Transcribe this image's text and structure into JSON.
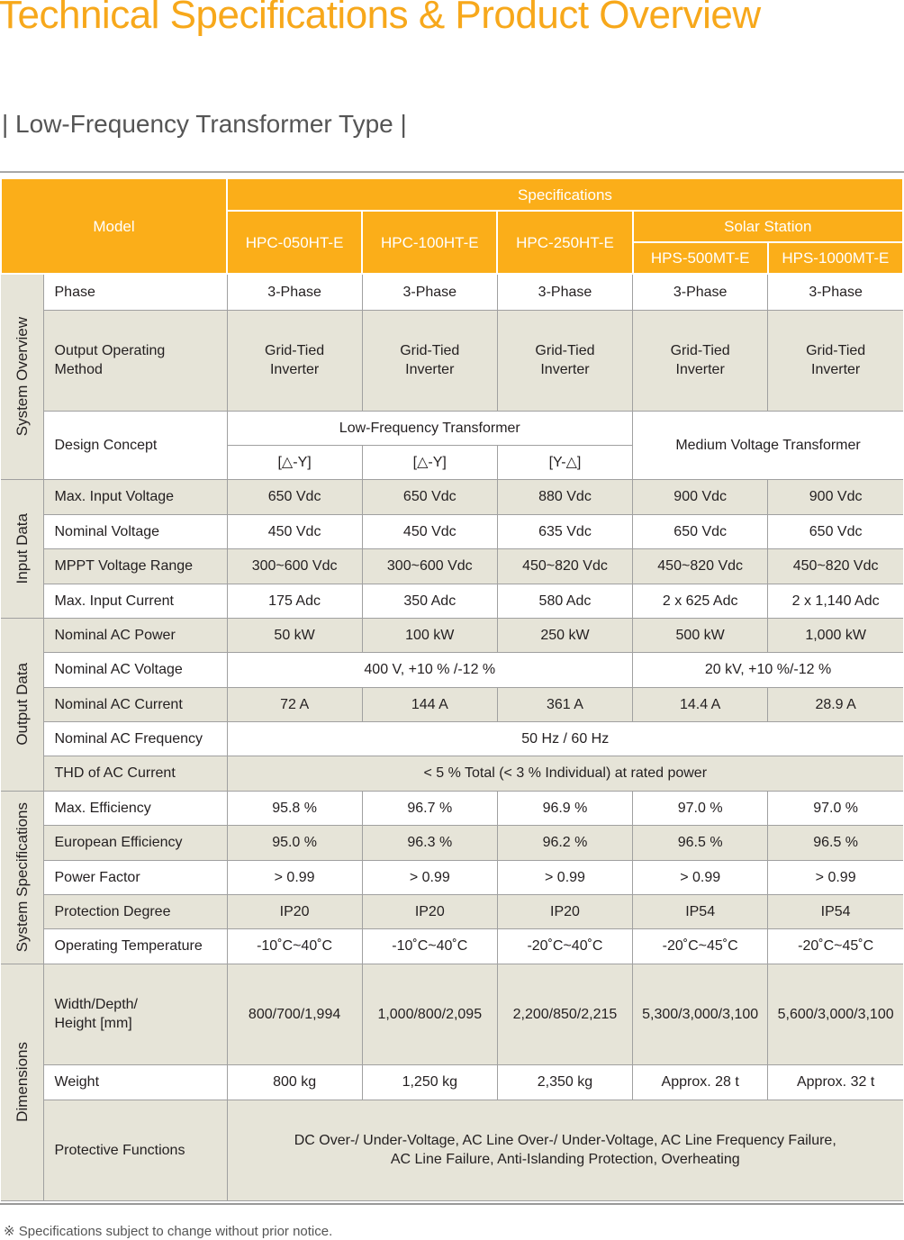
{
  "title": "Technical Specifications & Product Overview",
  "subtitle": "| Low-Frequency Transformer Type |",
  "header": {
    "model": "Model",
    "specifications": "Specifications",
    "solar_station": "Solar Station",
    "models": [
      "HPC-050HT-E",
      "HPC-100HT-E",
      "HPC-250HT-E",
      "HPS-500MT-E",
      "HPS-1000MT-E"
    ]
  },
  "groups": [
    {
      "category": "System Overview",
      "rows": [
        {
          "label": "Phase",
          "cells": [
            "3-Phase",
            "3-Phase",
            "3-Phase",
            "3-Phase",
            "3-Phase"
          ]
        },
        {
          "label": "Output Operating\nMethod",
          "cells": [
            "Grid-Tied\nInverter",
            "Grid-Tied\nInverter",
            "Grid-Tied\nInverter",
            "Grid-Tied\nInverter",
            "Grid-Tied\nInverter"
          ]
        },
        {
          "label": "Design Concept",
          "cells": [
            {
              "text": "Low-Frequency Transformer",
              "span": 3
            },
            {
              "text": "Medium Voltage Transformer",
              "span": 2,
              "rowspan": 2
            }
          ],
          "cells2": [
            "[△-Y]",
            "[△-Y]",
            "[Y-△]"
          ]
        }
      ]
    },
    {
      "category": "Input Data",
      "rows": [
        {
          "label": "Max. Input Voltage",
          "cells": [
            "650 Vdc",
            "650 Vdc",
            "880 Vdc",
            "900 Vdc",
            "900 Vdc"
          ]
        },
        {
          "label": "Nominal Voltage",
          "cells": [
            "450 Vdc",
            "450 Vdc",
            "635 Vdc",
            "650 Vdc",
            "650 Vdc"
          ]
        },
        {
          "label": "MPPT Voltage Range",
          "cells": [
            "300~600 Vdc",
            "300~600 Vdc",
            "450~820 Vdc",
            "450~820 Vdc",
            "450~820 Vdc"
          ]
        },
        {
          "label": "Max. Input Current",
          "cells": [
            "175 Adc",
            "350 Adc",
            "580 Adc",
            "2 x 625 Adc",
            "2 x 1,140 Adc"
          ]
        }
      ]
    },
    {
      "category": "Output Data",
      "rows": [
        {
          "label": "Nominal AC Power",
          "cells": [
            "50 kW",
            "100 kW",
            "250 kW",
            "500 kW",
            "1,000 kW"
          ]
        },
        {
          "label": "Nominal AC Voltage",
          "cells": [
            {
              "text": "400 V, +10 % /-12 %",
              "span": 3
            },
            {
              "text": "20 kV, +10 %/-12 %",
              "span": 2
            }
          ]
        },
        {
          "label": "Nominal AC Current",
          "cells": [
            "72 A",
            "144 A",
            "361 A",
            "14.4 A",
            "28.9 A"
          ]
        },
        {
          "label": "Nominal AC Frequency",
          "cells": [
            {
              "text": "50 Hz / 60 Hz",
              "span": 5
            }
          ]
        },
        {
          "label": "THD of AC Current",
          "cells": [
            {
              "text": "< 5 % Total (< 3 % Individual) at rated power",
              "span": 5
            }
          ]
        }
      ]
    },
    {
      "category": "System Specifications",
      "rows": [
        {
          "label": "Max. Efficiency",
          "cells": [
            "95.8 %",
            "96.7 %",
            "96.9 %",
            "97.0 %",
            "97.0 %"
          ]
        },
        {
          "label": "European Efficiency",
          "cells": [
            "95.0 %",
            "96.3 %",
            "96.2 %",
            "96.5 %",
            "96.5 %"
          ]
        },
        {
          "label": "Power Factor",
          "cells": [
            "> 0.99",
            "> 0.99",
            "> 0.99",
            "> 0.99",
            "> 0.99"
          ]
        },
        {
          "label": "Protection Degree",
          "cells": [
            "IP20",
            "IP20",
            "IP20",
            "IP54",
            "IP54"
          ]
        },
        {
          "label": "Operating Temperature",
          "cells": [
            "-10˚C~40˚C",
            "-10˚C~40˚C",
            "-20˚C~40˚C",
            "-20˚C~45˚C",
            "-20˚C~45˚C"
          ]
        }
      ]
    },
    {
      "category": "Dimensions",
      "rows": [
        {
          "label": "Width/Depth/\nHeight [mm]",
          "cells": [
            "800/700/1,994",
            "1,000/800/2,095",
            "2,200/850/2,215",
            "5,300/3,000/3,100",
            "5,600/3,000/3,100"
          ]
        },
        {
          "label": "Weight",
          "cells": [
            "800 kg",
            "1,250 kg",
            "2,350 kg",
            "Approx. 28 t",
            "Approx. 32 t"
          ]
        },
        {
          "label": "Protective Functions",
          "cells": [
            {
              "text": "DC Over-/ Under-Voltage, AC Line Over-/ Under-Voltage, AC Line Frequency Failure,\nAC Line Failure, Anti-Islanding Protection, Overheating",
              "span": 5
            }
          ]
        }
      ]
    }
  ],
  "footnote": "※  Specifications subject to change without prior notice."
}
